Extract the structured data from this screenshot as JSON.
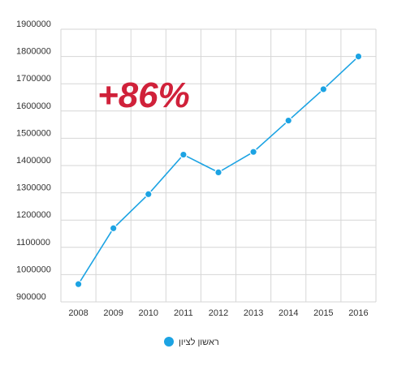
{
  "chart_data": {
    "type": "line",
    "x": [
      "2008",
      "2009",
      "2010",
      "2011",
      "2012",
      "2013",
      "2014",
      "2015",
      "2016"
    ],
    "series": [
      {
        "name": "ראשון לציון",
        "values": [
          965000,
          1170000,
          1295000,
          1440000,
          1375000,
          1450000,
          1565000,
          1680000,
          1800000
        ]
      }
    ],
    "y_ticks": [
      "1900000",
      "1800000",
      "1700000",
      "1600000",
      "1500000",
      "1400000",
      "1300000",
      "1200000",
      "1100000",
      "1000000",
      "900000"
    ],
    "ylim": [
      900000,
      1900000
    ],
    "annotation": "+86%",
    "legend_position": "bottom-center",
    "grid": true,
    "colors": {
      "series": "#1ca3e3",
      "annotation": "#d0213a",
      "grid": "#d6d6d6"
    }
  }
}
